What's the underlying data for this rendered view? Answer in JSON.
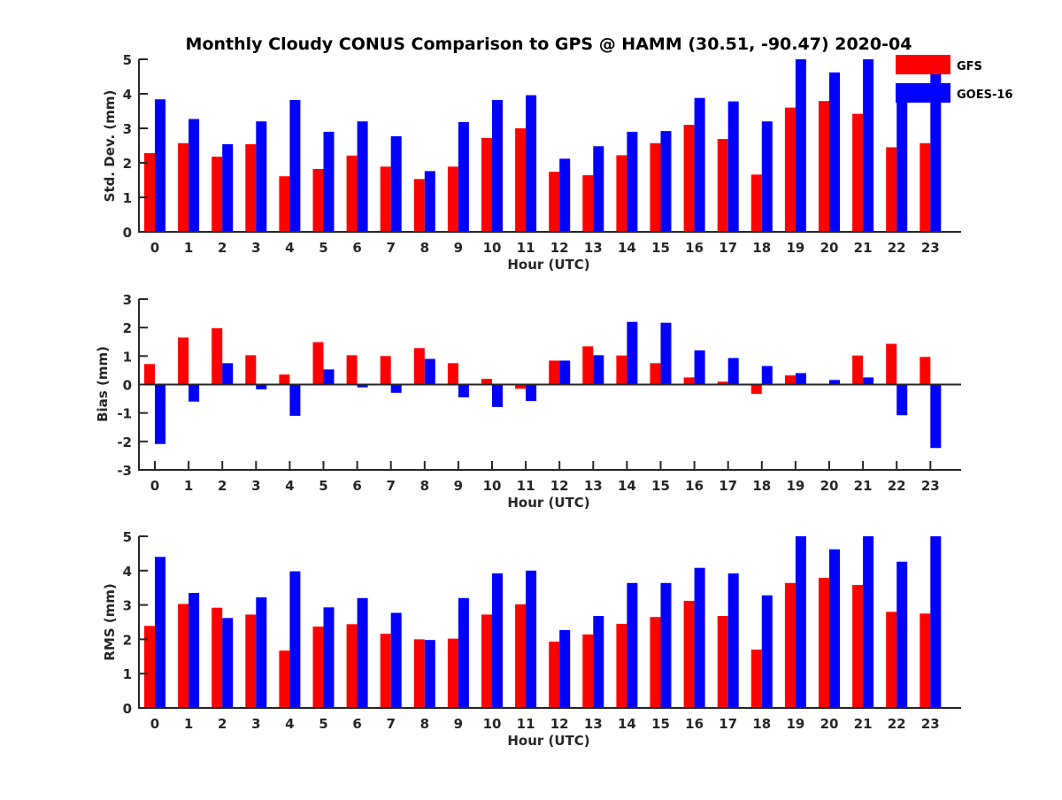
{
  "chart_data": [
    {
      "type": "bar",
      "title": "Monthly Cloudy CONUS Comparison to GPS @ HAMM (30.51, -90.47) 2020-04",
      "xlabel": "Hour (UTC)",
      "ylabel": "Std. Dev. (mm)",
      "ylim": [
        0,
        5
      ],
      "yticks": [
        "0",
        "1",
        "2",
        "3",
        "4",
        "5"
      ],
      "categories": [
        "0",
        "1",
        "2",
        "3",
        "4",
        "5",
        "6",
        "7",
        "8",
        "9",
        "10",
        "11",
        "12",
        "13",
        "14",
        "15",
        "16",
        "17",
        "18",
        "19",
        "20",
        "21",
        "22",
        "23"
      ],
      "series": [
        {
          "name": "GFS",
          "color": "#ff0000",
          "values": [
            2.28,
            2.57,
            2.18,
            2.54,
            1.61,
            1.82,
            2.21,
            1.89,
            1.53,
            1.89,
            2.72,
            3.0,
            1.74,
            1.64,
            2.22,
            2.57,
            3.1,
            2.69,
            1.66,
            3.6,
            3.79,
            3.42,
            2.45,
            2.57
          ]
        },
        {
          "name": "GOES-16",
          "color": "#0000ff",
          "values": [
            3.84,
            3.27,
            2.54,
            3.2,
            3.82,
            2.9,
            3.2,
            2.77,
            1.76,
            3.18,
            3.82,
            3.96,
            2.12,
            2.48,
            2.9,
            2.92,
            3.88,
            3.78,
            3.2,
            5.0,
            4.62,
            5.0,
            4.08,
            5.0
          ]
        }
      ],
      "legend": {
        "position": "top-right",
        "entries": [
          "GFS",
          "GOES-16"
        ]
      },
      "grid": false
    },
    {
      "type": "bar",
      "xlabel": "Hour (UTC)",
      "ylabel": "Bias (mm)",
      "ylim": [
        -3,
        3
      ],
      "yticks": [
        "-3",
        "-2",
        "-1",
        "0",
        "1",
        "2",
        "3"
      ],
      "categories": [
        "0",
        "1",
        "2",
        "3",
        "4",
        "5",
        "6",
        "7",
        "8",
        "9",
        "10",
        "11",
        "12",
        "13",
        "14",
        "15",
        "16",
        "17",
        "18",
        "19",
        "20",
        "21",
        "22",
        "23"
      ],
      "series": [
        {
          "name": "GFS",
          "color": "#ff0000",
          "values": [
            0.72,
            1.65,
            1.98,
            1.03,
            0.35,
            1.49,
            1.03,
            1.0,
            1.28,
            0.75,
            0.2,
            -0.15,
            0.84,
            1.34,
            1.02,
            0.75,
            0.25,
            0.1,
            -0.33,
            0.32,
            0.03,
            1.02,
            1.43,
            0.97
          ]
        },
        {
          "name": "GOES-16",
          "color": "#0000ff",
          "values": [
            -2.09,
            -0.6,
            0.75,
            -0.17,
            -1.1,
            0.53,
            -0.1,
            -0.29,
            0.9,
            -0.45,
            -0.79,
            -0.58,
            0.84,
            1.03,
            2.2,
            2.17,
            1.2,
            0.93,
            0.65,
            0.4,
            0.16,
            0.25,
            -1.08,
            -2.23
          ]
        }
      ],
      "grid": false
    },
    {
      "type": "bar",
      "xlabel": "Hour (UTC)",
      "ylabel": "RMS (mm)",
      "ylim": [
        0,
        5
      ],
      "yticks": [
        "0",
        "1",
        "2",
        "3",
        "4",
        "5"
      ],
      "categories": [
        "0",
        "1",
        "2",
        "3",
        "4",
        "5",
        "6",
        "7",
        "8",
        "9",
        "10",
        "11",
        "12",
        "13",
        "14",
        "15",
        "16",
        "17",
        "18",
        "19",
        "20",
        "21",
        "22",
        "23"
      ],
      "series": [
        {
          "name": "GFS",
          "color": "#ff0000",
          "values": [
            2.39,
            3.03,
            2.92,
            2.72,
            1.67,
            2.37,
            2.44,
            2.16,
            2.0,
            2.02,
            2.72,
            3.02,
            1.93,
            2.14,
            2.45,
            2.65,
            3.12,
            2.68,
            1.7,
            3.64,
            3.79,
            3.58,
            2.8,
            2.75
          ]
        },
        {
          "name": "GOES-16",
          "color": "#0000ff",
          "values": [
            4.4,
            3.35,
            2.62,
            3.22,
            3.98,
            2.93,
            3.2,
            2.77,
            1.98,
            3.2,
            3.92,
            4.0,
            2.27,
            2.68,
            3.64,
            3.64,
            4.08,
            3.92,
            3.28,
            5.0,
            4.62,
            5.0,
            4.26,
            5.0
          ]
        }
      ],
      "grid": false
    }
  ]
}
